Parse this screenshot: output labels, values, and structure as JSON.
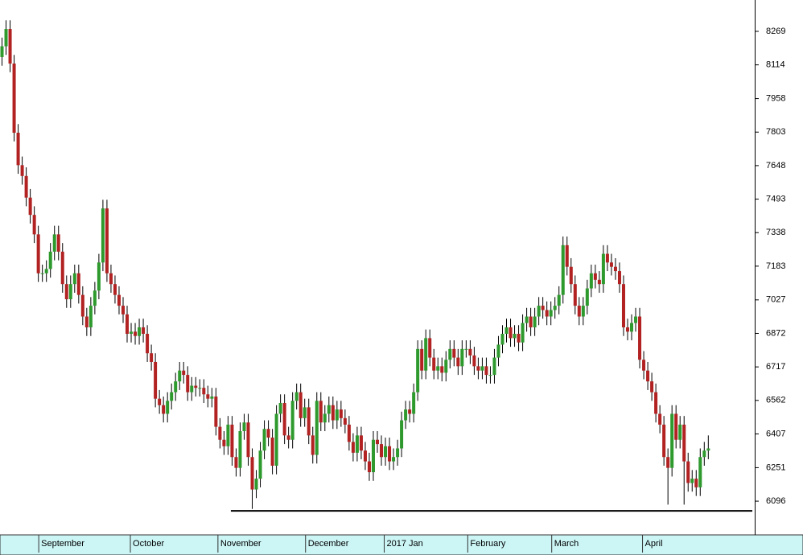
{
  "chart_data": {
    "type": "candlestick",
    "up_color": "#2e9a2e",
    "down_color": "#b22222",
    "wick_color": "#000000",
    "xlim": [
      -0.5,
      186.5
    ],
    "xticks": [
      {
        "value": 9.1,
        "label": "September"
      },
      {
        "value": 31.8,
        "label": "October"
      },
      {
        "value": 53.5,
        "label": "November"
      },
      {
        "value": 75.2,
        "label": "December"
      },
      {
        "value": 94.7,
        "label": "2017 Jan"
      },
      {
        "value": 115.4,
        "label": "February"
      },
      {
        "value": 136.2,
        "label": "March"
      },
      {
        "value": 158.7,
        "label": "April"
      }
    ],
    "ylim": [
      5940,
      8414
    ],
    "yticks": [
      6096,
      6251,
      6407,
      6562,
      6717,
      6872,
      7027,
      7183,
      7338,
      7493,
      7648,
      7803,
      7958,
      8114,
      8269
    ],
    "support_line": {
      "value": 6051,
      "from": 56.7
    },
    "candles": [
      [
        8150,
        8240,
        8110,
        8200
      ],
      [
        8200,
        8320,
        8160,
        8280
      ],
      [
        8280,
        8320,
        8080,
        8120
      ],
      [
        8120,
        8160,
        7760,
        7800
      ],
      [
        7800,
        7840,
        7610,
        7650
      ],
      [
        7650,
        7690,
        7560,
        7600
      ],
      [
        7600,
        7640,
        7460,
        7500
      ],
      [
        7500,
        7540,
        7380,
        7420
      ],
      [
        7420,
        7460,
        7290,
        7330
      ],
      [
        7330,
        7370,
        7110,
        7150
      ],
      [
        7150,
        7190,
        7110,
        7150
      ],
      [
        7150,
        7210,
        7110,
        7170
      ],
      [
        7170,
        7290,
        7130,
        7250
      ],
      [
        7250,
        7370,
        7210,
        7330
      ],
      [
        7330,
        7370,
        7210,
        7250
      ],
      [
        7250,
        7290,
        7060,
        7100
      ],
      [
        7100,
        7140,
        6990,
        7030
      ],
      [
        7030,
        7140,
        6990,
        7100
      ],
      [
        7100,
        7190,
        7060,
        7150
      ],
      [
        7150,
        7190,
        7010,
        7050
      ],
      [
        7050,
        7090,
        6910,
        6950
      ],
      [
        6950,
        6990,
        6860,
        6900
      ],
      [
        6900,
        7040,
        6860,
        7000
      ],
      [
        7000,
        7110,
        6960,
        7070
      ],
      [
        7070,
        7240,
        7030,
        7200
      ],
      [
        7200,
        7490,
        7160,
        7450
      ],
      [
        7450,
        7490,
        7110,
        7150
      ],
      [
        7150,
        7190,
        7060,
        7100
      ],
      [
        7100,
        7140,
        7010,
        7050
      ],
      [
        7050,
        7090,
        6960,
        7000
      ],
      [
        7000,
        7040,
        6920,
        6960
      ],
      [
        6960,
        7000,
        6830,
        6870
      ],
      [
        6870,
        6920,
        6830,
        6880
      ],
      [
        6880,
        6920,
        6820,
        6860
      ],
      [
        6860,
        6940,
        6820,
        6900
      ],
      [
        6900,
        6940,
        6830,
        6870
      ],
      [
        6870,
        6910,
        6740,
        6780
      ],
      [
        6780,
        6820,
        6700,
        6740
      ],
      [
        6740,
        6780,
        6530,
        6570
      ],
      [
        6570,
        6610,
        6500,
        6540
      ],
      [
        6540,
        6580,
        6460,
        6500
      ],
      [
        6500,
        6600,
        6460,
        6560
      ],
      [
        6560,
        6640,
        6520,
        6600
      ],
      [
        6600,
        6690,
        6560,
        6650
      ],
      [
        6650,
        6740,
        6610,
        6700
      ],
      [
        6700,
        6740,
        6640,
        6680
      ],
      [
        6680,
        6720,
        6560,
        6600
      ],
      [
        6600,
        6670,
        6560,
        6630
      ],
      [
        6630,
        6670,
        6580,
        6620
      ],
      [
        6620,
        6660,
        6580,
        6620
      ],
      [
        6620,
        6660,
        6550,
        6590
      ],
      [
        6590,
        6630,
        6530,
        6570
      ],
      [
        6570,
        6620,
        6530,
        6580
      ],
      [
        6580,
        6620,
        6400,
        6440
      ],
      [
        6440,
        6480,
        6340,
        6380
      ],
      [
        6380,
        6420,
        6310,
        6350
      ],
      [
        6350,
        6490,
        6310,
        6450
      ],
      [
        6450,
        6490,
        6260,
        6300
      ],
      [
        6300,
        6340,
        6210,
        6250
      ],
      [
        6250,
        6460,
        6210,
        6420
      ],
      [
        6420,
        6500,
        6380,
        6460
      ],
      [
        6460,
        6500,
        6260,
        6300
      ],
      [
        6300,
        6340,
        6060,
        6150
      ],
      [
        6150,
        6240,
        6110,
        6200
      ],
      [
        6200,
        6370,
        6160,
        6330
      ],
      [
        6330,
        6470,
        6290,
        6430
      ],
      [
        6430,
        6470,
        6350,
        6390
      ],
      [
        6390,
        6430,
        6220,
        6260
      ],
      [
        6260,
        6540,
        6220,
        6500
      ],
      [
        6500,
        6590,
        6460,
        6550
      ],
      [
        6550,
        6590,
        6360,
        6400
      ],
      [
        6400,
        6440,
        6340,
        6380
      ],
      [
        6380,
        6600,
        6340,
        6560
      ],
      [
        6560,
        6640,
        6520,
        6600
      ],
      [
        6600,
        6640,
        6440,
        6480
      ],
      [
        6480,
        6570,
        6440,
        6530
      ],
      [
        6530,
        6570,
        6360,
        6400
      ],
      [
        6400,
        6440,
        6270,
        6310
      ],
      [
        6310,
        6600,
        6270,
        6560
      ],
      [
        6560,
        6600,
        6420,
        6460
      ],
      [
        6460,
        6540,
        6420,
        6500
      ],
      [
        6500,
        6580,
        6460,
        6540
      ],
      [
        6540,
        6580,
        6430,
        6470
      ],
      [
        6470,
        6560,
        6430,
        6520
      ],
      [
        6520,
        6560,
        6440,
        6480
      ],
      [
        6480,
        6520,
        6410,
        6450
      ],
      [
        6450,
        6490,
        6330,
        6370
      ],
      [
        6370,
        6410,
        6280,
        6320
      ],
      [
        6320,
        6440,
        6280,
        6400
      ],
      [
        6400,
        6440,
        6290,
        6330
      ],
      [
        6330,
        6370,
        6240,
        6280
      ],
      [
        6280,
        6320,
        6190,
        6230
      ],
      [
        6230,
        6420,
        6190,
        6380
      ],
      [
        6380,
        6420,
        6320,
        6360
      ],
      [
        6360,
        6400,
        6260,
        6300
      ],
      [
        6300,
        6390,
        6260,
        6350
      ],
      [
        6350,
        6390,
        6240,
        6280
      ],
      [
        6280,
        6340,
        6240,
        6300
      ],
      [
        6300,
        6380,
        6260,
        6340
      ],
      [
        6340,
        6510,
        6300,
        6470
      ],
      [
        6470,
        6560,
        6430,
        6520
      ],
      [
        6520,
        6560,
        6460,
        6500
      ],
      [
        6500,
        6640,
        6460,
        6600
      ],
      [
        6600,
        6840,
        6560,
        6800
      ],
      [
        6800,
        6840,
        6660,
        6700
      ],
      [
        6700,
        6890,
        6660,
        6850
      ],
      [
        6850,
        6890,
        6720,
        6760
      ],
      [
        6760,
        6800,
        6660,
        6700
      ],
      [
        6700,
        6760,
        6660,
        6720
      ],
      [
        6720,
        6760,
        6650,
        6690
      ],
      [
        6690,
        6790,
        6650,
        6750
      ],
      [
        6750,
        6840,
        6710,
        6800
      ],
      [
        6800,
        6840,
        6720,
        6760
      ],
      [
        6760,
        6800,
        6680,
        6720
      ],
      [
        6720,
        6840,
        6680,
        6800
      ],
      [
        6800,
        6840,
        6760,
        6800
      ],
      [
        6800,
        6840,
        6730,
        6770
      ],
      [
        6770,
        6810,
        6680,
        6720
      ],
      [
        6720,
        6760,
        6660,
        6700
      ],
      [
        6700,
        6760,
        6660,
        6720
      ],
      [
        6720,
        6760,
        6640,
        6680
      ],
      [
        6680,
        6720,
        6640,
        6680
      ],
      [
        6680,
        6800,
        6640,
        6760
      ],
      [
        6760,
        6860,
        6720,
        6820
      ],
      [
        6820,
        6910,
        6780,
        6870
      ],
      [
        6870,
        6940,
        6830,
        6900
      ],
      [
        6900,
        6940,
        6810,
        6850
      ],
      [
        6850,
        6910,
        6810,
        6870
      ],
      [
        6870,
        6910,
        6790,
        6830
      ],
      [
        6830,
        6960,
        6790,
        6920
      ],
      [
        6920,
        6990,
        6880,
        6950
      ],
      [
        6950,
        6990,
        6860,
        6900
      ],
      [
        6900,
        6990,
        6860,
        6950
      ],
      [
        6950,
        7040,
        6910,
        7000
      ],
      [
        7000,
        7040,
        6940,
        6980
      ],
      [
        6980,
        7020,
        6910,
        6950
      ],
      [
        6950,
        7020,
        6910,
        6980
      ],
      [
        6980,
        7040,
        6940,
        7000
      ],
      [
        7000,
        7090,
        6960,
        7050
      ],
      [
        7050,
        7320,
        7010,
        7280
      ],
      [
        7280,
        7320,
        7140,
        7180
      ],
      [
        7180,
        7220,
        7060,
        7100
      ],
      [
        7100,
        7140,
        6960,
        7000
      ],
      [
        7000,
        7040,
        6910,
        6950
      ],
      [
        6950,
        7040,
        6910,
        7000
      ],
      [
        7000,
        7120,
        6960,
        7080
      ],
      [
        7080,
        7190,
        7040,
        7150
      ],
      [
        7150,
        7190,
        7080,
        7120
      ],
      [
        7120,
        7160,
        7060,
        7100
      ],
      [
        7100,
        7280,
        7060,
        7240
      ],
      [
        7240,
        7280,
        7160,
        7200
      ],
      [
        7200,
        7240,
        7140,
        7180
      ],
      [
        7180,
        7220,
        7120,
        7160
      ],
      [
        7160,
        7200,
        7060,
        7100
      ],
      [
        7100,
        7140,
        6860,
        6900
      ],
      [
        6900,
        6940,
        6840,
        6880
      ],
      [
        6880,
        6960,
        6840,
        6920
      ],
      [
        6920,
        6990,
        6880,
        6950
      ],
      [
        6950,
        6990,
        6710,
        6750
      ],
      [
        6750,
        6790,
        6660,
        6700
      ],
      [
        6700,
        6740,
        6610,
        6650
      ],
      [
        6650,
        6690,
        6560,
        6600
      ],
      [
        6600,
        6640,
        6460,
        6500
      ],
      [
        6500,
        6540,
        6410,
        6450
      ],
      [
        6450,
        6490,
        6260,
        6300
      ],
      [
        6300,
        6340,
        6080,
        6250
      ],
      [
        6250,
        6540,
        6210,
        6500
      ],
      [
        6500,
        6540,
        6340,
        6380
      ],
      [
        6380,
        6490,
        6340,
        6450
      ],
      [
        6450,
        6490,
        6080,
        6280
      ],
      [
        6280,
        6320,
        6140,
        6180
      ],
      [
        6180,
        6240,
        6140,
        6200
      ],
      [
        6200,
        6240,
        6120,
        6160
      ],
      [
        6160,
        6340,
        6120,
        6300
      ],
      [
        6300,
        6370,
        6260,
        6330
      ],
      [
        6330,
        6400,
        6290,
        6340
      ]
    ]
  }
}
